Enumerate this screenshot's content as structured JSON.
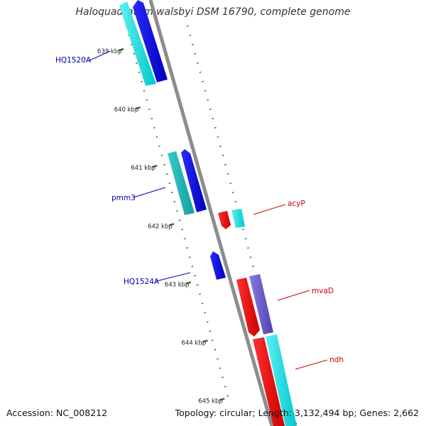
{
  "title": "Haloquadratum walsbyi DSM 16790, complete genome",
  "footer": {
    "accession": "Accession: NC_008212",
    "topology": "Topology: circular; Length: 3,132,494 bp; Genes: 2,662"
  },
  "colors": {
    "backbone": "#8c8c8c",
    "tick": "#2e7d1e",
    "label_forward": "#cc0000",
    "label_reverse": "#0000aa"
  },
  "ticks": [
    {
      "label": "639 kbp",
      "kbp": 639
    },
    {
      "label": "640 kbp",
      "kbp": 640
    },
    {
      "label": "641 kbp",
      "kbp": 641
    },
    {
      "label": "642 kbp",
      "kbp": 642
    },
    {
      "label": "643 kbp",
      "kbp": 643
    },
    {
      "label": "644 kbp",
      "kbp": 644
    },
    {
      "label": "645 kbp",
      "kbp": 645
    }
  ],
  "gene_labels": [
    {
      "name": "HQ1520A",
      "strand": "reverse"
    },
    {
      "name": "pmm3",
      "strand": "reverse"
    },
    {
      "name": "HQ1524A",
      "strand": "reverse"
    },
    {
      "name": "acyP",
      "strand": "forward"
    },
    {
      "name": "mvaD",
      "strand": "forward"
    },
    {
      "name": "ndh",
      "strand": "forward"
    }
  ]
}
